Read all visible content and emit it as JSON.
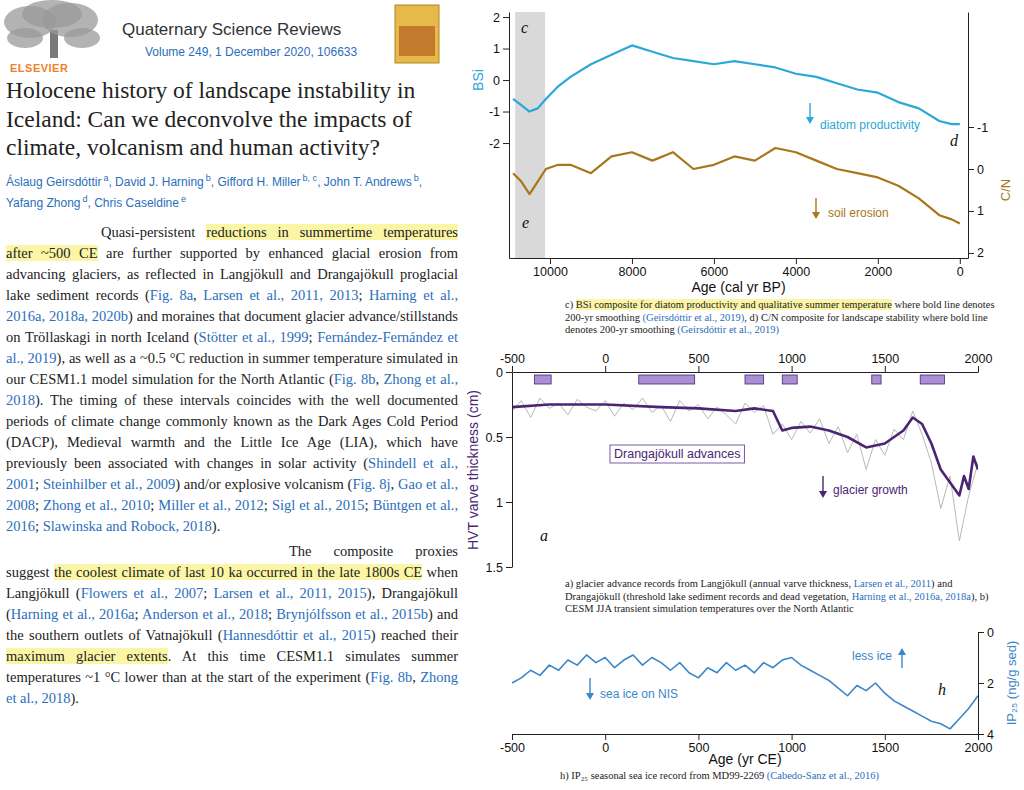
{
  "document": {
    "publisher": "ELSEVIER",
    "journal": "Quaternary Science Reviews",
    "issue": "Volume 249, 1 December 2020, 106633",
    "title": "Holocene history of landscape instability in Iceland: Can we deconvolve the impacts of climate, volcanism and human activity?",
    "authors": [
      {
        "name": "Áslaug Geirsdóttir",
        "affiliation": "a"
      },
      {
        "name": "David J. Harning",
        "affiliation": "b"
      },
      {
        "name": "Gifford H. Miller",
        "affiliation": "b, c"
      },
      {
        "name": "John T. Andrews",
        "affiliation": "b"
      },
      {
        "name": "Yafang Zhong",
        "affiliation": "d"
      },
      {
        "name": "Chris Caseldine",
        "affiliation": "e"
      }
    ],
    "author_separator": ", ",
    "paragraphs": [
      [
        {
          "text": "Quasi-persistent "
        },
        {
          "text": "reductions in summertime temperatures after ~500 CE",
          "highlight": true
        },
        {
          "text": " are further supported by enhanced glacial erosion from advancing glaciers, as reflected in Langjökull and Drangajökull proglacial lake sediment records ("
        },
        {
          "text": "Fig. 8a",
          "link": true
        },
        {
          "text": ", "
        },
        {
          "text": "Larsen et al., 2011, 2013",
          "link": true
        },
        {
          "text": "; "
        },
        {
          "text": "Harning et al., 2016a, 2018a, 2020b",
          "link": true
        },
        {
          "text": ") and moraines that document glacier advance/stillstands on Tröllaskagi in north Iceland ("
        },
        {
          "text": "Stötter et al., 1999",
          "link": true
        },
        {
          "text": "; "
        },
        {
          "text": "Fernández-Fernández et al., 2019",
          "link": true
        },
        {
          "text": "), as well as a ~0.5 °C reduction in summer temperature simulated in our CESM1.1 model simulation for the North Atlantic ("
        },
        {
          "text": "Fig. 8b",
          "link": true
        },
        {
          "text": ", "
        },
        {
          "text": "Zhong et al., 2018",
          "link": true
        },
        {
          "text": "). The timing of these intervals coincides with the well documented periods of climate change commonly known as the Dark Ages Cold Period (DACP), Medieval warmth and the Little Ice Age (LIA), which have previously been associated with changes in solar activity ("
        },
        {
          "text": "Shindell et al., 2001",
          "link": true
        },
        {
          "text": "; "
        },
        {
          "text": "Steinhilber et al., 2009",
          "link": true
        },
        {
          "text": ") and/or explosive volcanism ("
        },
        {
          "text": "Fig. 8j",
          "link": true
        },
        {
          "text": ", "
        },
        {
          "text": "Gao et al., 2008",
          "link": true
        },
        {
          "text": "; "
        },
        {
          "text": "Zhong et al., 2010",
          "link": true
        },
        {
          "text": "; "
        },
        {
          "text": "Miller et al., 2012",
          "link": true
        },
        {
          "text": "; "
        },
        {
          "text": "Sigl et al., 2015",
          "link": true
        },
        {
          "text": "; "
        },
        {
          "text": "Büntgen et al., 2016",
          "link": true
        },
        {
          "text": "; "
        },
        {
          "text": "Slawinska and Robock, 2018",
          "link": true
        },
        {
          "text": ")."
        }
      ],
      [
        {
          "text": "The composite proxies suggest "
        },
        {
          "text": "the coolest climate of last 10 ka occurred in the late 1800s CE",
          "highlight": true
        },
        {
          "text": " when Langjökull ("
        },
        {
          "text": "Flowers et al., 2007",
          "link": true
        },
        {
          "text": "; "
        },
        {
          "text": "Larsen et al., 2011, 2015",
          "link": true
        },
        {
          "text": "), Drangajökull ("
        },
        {
          "text": "Harning et al., 2016a",
          "link": true
        },
        {
          "text": "; "
        },
        {
          "text": "Anderson et al., 2018",
          "link": true
        },
        {
          "text": "; "
        },
        {
          "text": "Brynjólfsson et al., 2015b",
          "link": true
        },
        {
          "text": ") and the southern outlets of Vatnajökull ("
        },
        {
          "text": "Hannesdóttir et al., 2015",
          "link": true
        },
        {
          "text": ") reached their "
        },
        {
          "text": "maximum glacier extents",
          "highlight": true
        },
        {
          "text": ". At this time CESM1.1 simulates summer temperatures ~1 °C lower than at the start of the experiment ("
        },
        {
          "text": "Fig. 8b",
          "link": true
        },
        {
          "text": ", "
        },
        {
          "text": "Zhong et al., 2018",
          "link": true
        },
        {
          "text": ")."
        }
      ]
    ]
  },
  "chart_data": [
    {
      "type": "line",
      "x_label": "Age (cal yr BP)",
      "y_label": "BSi",
      "y2_label": "C/N",
      "xlim": [
        11000,
        -200
      ],
      "xticks": [
        10000,
        8000,
        6000,
        4000,
        2000,
        0
      ],
      "ylim": [
        -5.65,
        2.16
      ],
      "yticks": [
        -2,
        -1,
        0,
        1,
        2
      ],
      "y2lim": [
        2.12,
        -3.74
      ],
      "y2ticks": [
        -1,
        0,
        1,
        2
      ],
      "x": [
        10900,
        10700,
        10500,
        10300,
        10100,
        9800,
        9500,
        9000,
        8500,
        8000,
        7500,
        7000,
        6500,
        6000,
        5500,
        5000,
        4500,
        4000,
        3500,
        3000,
        2500,
        2000,
        1500,
        1000,
        500,
        200,
        0
      ],
      "series": [
        {
          "color": "#2ba7d8",
          "values": [
            -0.6,
            -0.8,
            -1.0,
            -0.9,
            -0.6,
            -0.2,
            0.1,
            0.5,
            0.8,
            1.1,
            0.9,
            0.7,
            0.6,
            0.5,
            0.6,
            0.5,
            0.4,
            0.2,
            0.1,
            -0.1,
            -0.3,
            -0.4,
            -0.7,
            -0.9,
            -1.3,
            -1.4,
            -1.4
          ]
        },
        {
          "color": "#a8761b",
          "axis": "y2",
          "values": [
            0.1,
            0.3,
            0.6,
            0.3,
            0.0,
            -0.1,
            -0.1,
            0.1,
            -0.3,
            -0.4,
            -0.2,
            -0.4,
            0.0,
            -0.1,
            -0.3,
            -0.2,
            -0.5,
            -0.4,
            -0.2,
            0.0,
            0.1,
            0.2,
            0.4,
            0.7,
            1.1,
            1.2,
            1.3
          ]
        }
      ],
      "bands": [
        [
          10850,
          10120
        ]
      ],
      "annotations": [
        "diatom productivity",
        "soil erosion"
      ],
      "panel_labels": [
        "c",
        "d",
        "e"
      ],
      "caption": [
        {
          "text": "c) "
        },
        {
          "text": "BSi composite for diatom productivity and qualitative summer temperature",
          "highlight": true
        },
        {
          "text": " where bold line denotes 200-yr smoothing "
        },
        {
          "text": "(Geirsdóttir et al., 2019)",
          "link": true
        },
        {
          "text": ", d) C/N composite for landscape stability where bold line denotes 200-yr smoothing "
        },
        {
          "text": "(Geirsdóttir et al., 2019)",
          "link": true
        }
      ]
    },
    {
      "type": "line",
      "y_label": "HVT varve thickness (cm)",
      "xlim": [
        -500,
        2000
      ],
      "xticks": [
        -500,
        0,
        500,
        1000,
        1500,
        2000
      ],
      "ylim": [
        1.5,
        0
      ],
      "yticks": [
        0,
        0.5,
        1,
        1.5
      ],
      "series": [
        {
          "color": "#b8b8b8",
          "x": [
            -500,
            -450,
            -400,
            -350,
            -300,
            -250,
            -200,
            -150,
            -100,
            -50,
            0,
            50,
            100,
            150,
            200,
            250,
            300,
            350,
            400,
            450,
            500,
            550,
            600,
            650,
            700,
            750,
            800,
            850,
            900,
            950,
            1000,
            1050,
            1100,
            1150,
            1200,
            1250,
            1300,
            1350,
            1400,
            1450,
            1500,
            1550,
            1600,
            1650,
            1700,
            1750,
            1800,
            1850,
            1900,
            1950,
            2000
          ],
          "values": [
            0.3,
            0.22,
            0.35,
            0.2,
            0.28,
            0.24,
            0.33,
            0.21,
            0.27,
            0.3,
            0.22,
            0.34,
            0.24,
            0.29,
            0.2,
            0.31,
            0.26,
            0.38,
            0.22,
            0.3,
            0.25,
            0.36,
            0.27,
            0.33,
            0.4,
            0.24,
            0.31,
            0.26,
            0.48,
            0.4,
            0.52,
            0.38,
            0.47,
            0.36,
            0.55,
            0.42,
            0.62,
            0.48,
            0.75,
            0.52,
            0.64,
            0.44,
            0.52,
            0.3,
            0.48,
            0.7,
            1.05,
            0.8,
            1.3,
            0.95,
            0.7
          ]
        },
        {
          "color": "#4b2574",
          "x": [
            -500,
            -300,
            0,
            300,
            500,
            700,
            800,
            900,
            950,
            1000,
            1100,
            1200,
            1300,
            1400,
            1500,
            1550,
            1600,
            1650,
            1700,
            1750,
            1800,
            1850,
            1900,
            1925,
            1950,
            1975,
            2000
          ],
          "values": [
            0.27,
            0.25,
            0.25,
            0.27,
            0.28,
            0.3,
            0.28,
            0.3,
            0.45,
            0.43,
            0.42,
            0.45,
            0.5,
            0.58,
            0.55,
            0.5,
            0.45,
            0.35,
            0.4,
            0.55,
            0.75,
            0.85,
            0.95,
            0.8,
            0.9,
            0.65,
            0.75
          ]
        }
      ],
      "advances": {
        "label": "Drangajökull advances",
        "periods": [
          [
            -380,
            -290
          ],
          [
            180,
            480
          ],
          [
            750,
            850
          ],
          [
            950,
            1030
          ],
          [
            1430,
            1480
          ],
          [
            1690,
            1820
          ]
        ]
      },
      "annotations": [
        "glacier growth"
      ],
      "panel_labels": [
        "a"
      ],
      "caption": [
        {
          "text": "a) glacier advance records from Langjökull (annual varve thickness, "
        },
        {
          "text": "Larsen et al., 2011",
          "link": true
        },
        {
          "text": ") and Drangajökull (threshold lake sediment records and dead vegetation, "
        },
        {
          "text": "Harning et al., 2016a, 2018a",
          "link": true
        },
        {
          "text": "), b) CESM JJA transient simulation temperatures over the North Atlantic"
        }
      ]
    },
    {
      "type": "line",
      "x_label": "Age (yr CE)",
      "y2_label": "IP₂₅ (ng/g sed)",
      "xlim": [
        -500,
        2000
      ],
      "xticks": [
        -500,
        0,
        500,
        1000,
        1500,
        2000
      ],
      "y2lim": [
        4,
        0
      ],
      "y2ticks": [
        0,
        2,
        4
      ],
      "x": [
        -500,
        -450,
        -400,
        -350,
        -300,
        -250,
        -200,
        -150,
        -100,
        -50,
        0,
        50,
        100,
        150,
        200,
        250,
        300,
        350,
        400,
        450,
        500,
        550,
        600,
        650,
        700,
        750,
        800,
        850,
        900,
        950,
        1000,
        1050,
        1100,
        1150,
        1200,
        1250,
        1300,
        1350,
        1400,
        1450,
        1500,
        1550,
        1600,
        1650,
        1700,
        1750,
        1800,
        1850,
        1900,
        1950,
        2000
      ],
      "series": [
        {
          "color": "#3a87c9",
          "axis": "y2",
          "values": [
            2.0,
            1.8,
            1.5,
            1.7,
            1.3,
            1.5,
            1.1,
            1.3,
            0.9,
            1.2,
            1.0,
            1.4,
            1.1,
            0.9,
            1.3,
            1.0,
            1.2,
            1.5,
            1.2,
            1.6,
            1.8,
            1.4,
            1.6,
            1.2,
            1.5,
            1.3,
            1.6,
            1.2,
            1.4,
            1.1,
            1.0,
            1.3,
            1.5,
            1.7,
            1.9,
            2.2,
            2.5,
            2.1,
            2.3,
            2.0,
            2.4,
            2.7,
            2.9,
            3.1,
            3.3,
            3.5,
            3.6,
            3.8,
            3.4,
            3.0,
            2.5
          ]
        }
      ],
      "annotations": [
        "sea ice on NIS",
        "less ice"
      ],
      "panel_labels": [
        "h"
      ],
      "caption": [
        {
          "text": "h) IP₂₅ seasonal sea ice record from MD99-2269 "
        },
        {
          "text": "(Cabedo-Sanz et al., 2016)",
          "link": true
        }
      ]
    }
  ]
}
